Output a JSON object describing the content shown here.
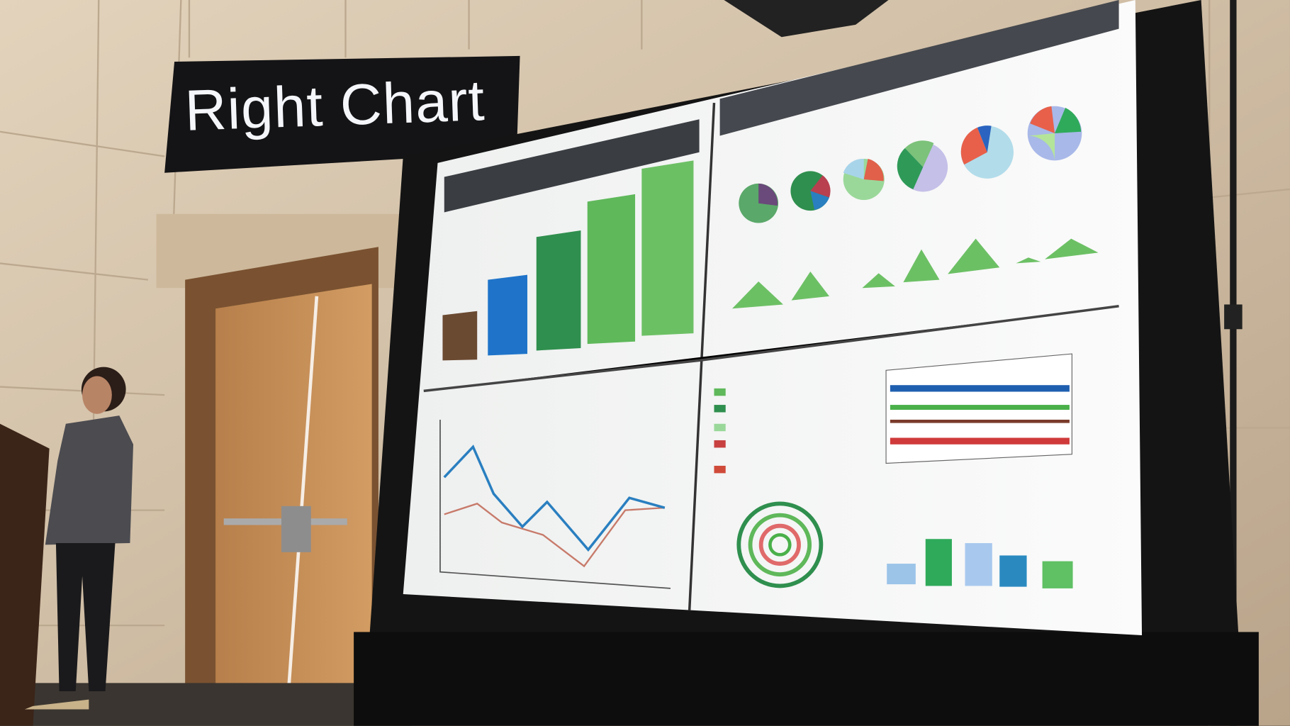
{
  "banner": {
    "text": "Right Chart"
  },
  "colors": {
    "wall": "#d8c6ad",
    "door_wood": "#c48d58",
    "screen_frame": "#141414",
    "screen_header": "#3a3d42",
    "bar_brown": "#6b4a32",
    "bar_blue": "#1f74c9",
    "bar_green": "#2f8f4e",
    "bar_light_green": "#5fb85a",
    "line_blue": "#2a7fc0",
    "line_red": "#c77a6a"
  }
}
